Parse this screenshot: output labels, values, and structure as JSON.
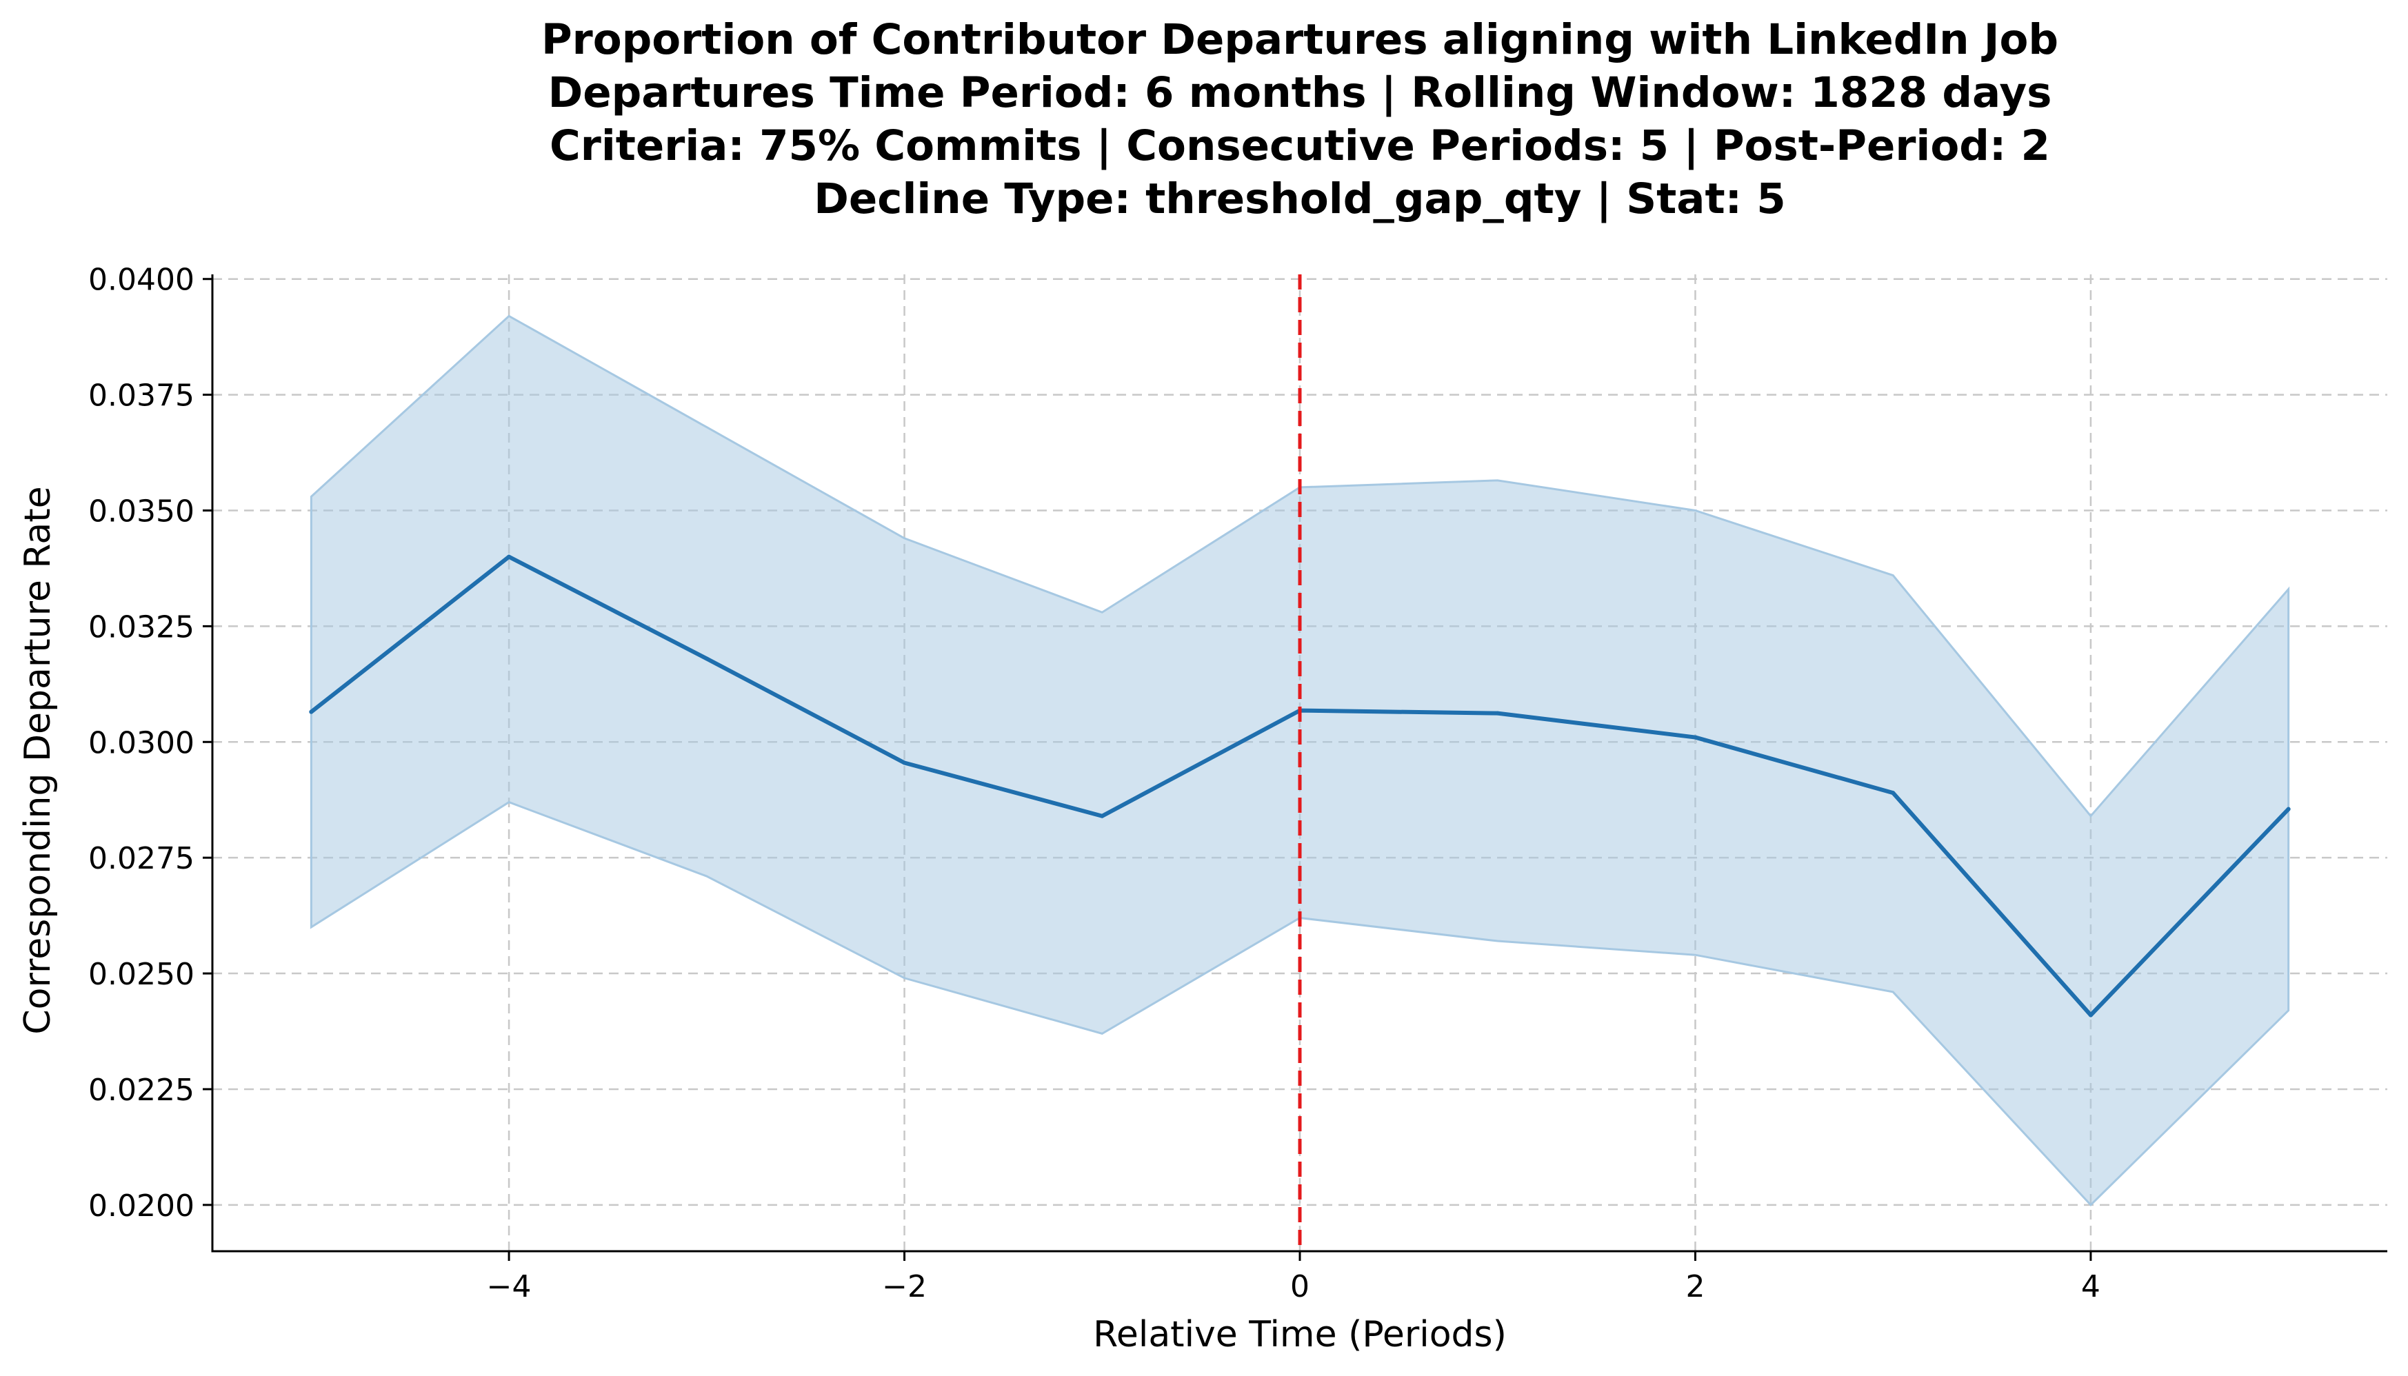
{
  "chart_data": {
    "type": "line",
    "title_lines": [
      "Proportion of Contributor Departures aligning with LinkedIn Job",
      "Departures Time Period: 6 months | Rolling Window: 1828 days",
      "Criteria: 75% Commits | Consecutive Periods: 5 | Post-Period: 2",
      "Decline Type: threshold_gap_qty | Stat: 5"
    ],
    "xlabel": "Relative Time (Periods)",
    "ylabel": "Corresponding Departure Rate",
    "xlim": [
      -5.5,
      5.5
    ],
    "ylim": [
      0.019,
      0.0401
    ],
    "x_ticks": [
      -4,
      -2,
      0,
      2,
      4
    ],
    "x_tick_labels": [
      "−4",
      "−2",
      "0",
      "2",
      "4"
    ],
    "y_ticks": [
      0.02,
      0.0225,
      0.025,
      0.0275,
      0.03,
      0.0325,
      0.035,
      0.0375,
      0.04
    ],
    "y_tick_labels": [
      "0.0200",
      "0.0225",
      "0.0250",
      "0.0275",
      "0.0300",
      "0.0325",
      "0.0350",
      "0.0375",
      "0.0400"
    ],
    "grid": true,
    "reference_line": {
      "x": 0,
      "color": "#e41a1c",
      "style": "dashed"
    },
    "series": [
      {
        "color": "#1f6fae",
        "band_color": "#a6c8e2",
        "x": [
          -5,
          -4,
          -3,
          -2,
          -1,
          0,
          1,
          2,
          3,
          4,
          5
        ],
        "y": [
          0.03065,
          0.034,
          0.0318,
          0.02955,
          0.0284,
          0.03068,
          0.03062,
          0.0301,
          0.0289,
          0.0241,
          0.02855
        ],
        "upper": [
          0.0353,
          0.0392,
          0.0368,
          0.0344,
          0.0328,
          0.0355,
          0.03565,
          0.035,
          0.0336,
          0.0284,
          0.0333
        ],
        "lower": [
          0.026,
          0.0287,
          0.0271,
          0.0249,
          0.0237,
          0.0262,
          0.0257,
          0.0254,
          0.0246,
          0.02,
          0.0242
        ]
      }
    ]
  }
}
